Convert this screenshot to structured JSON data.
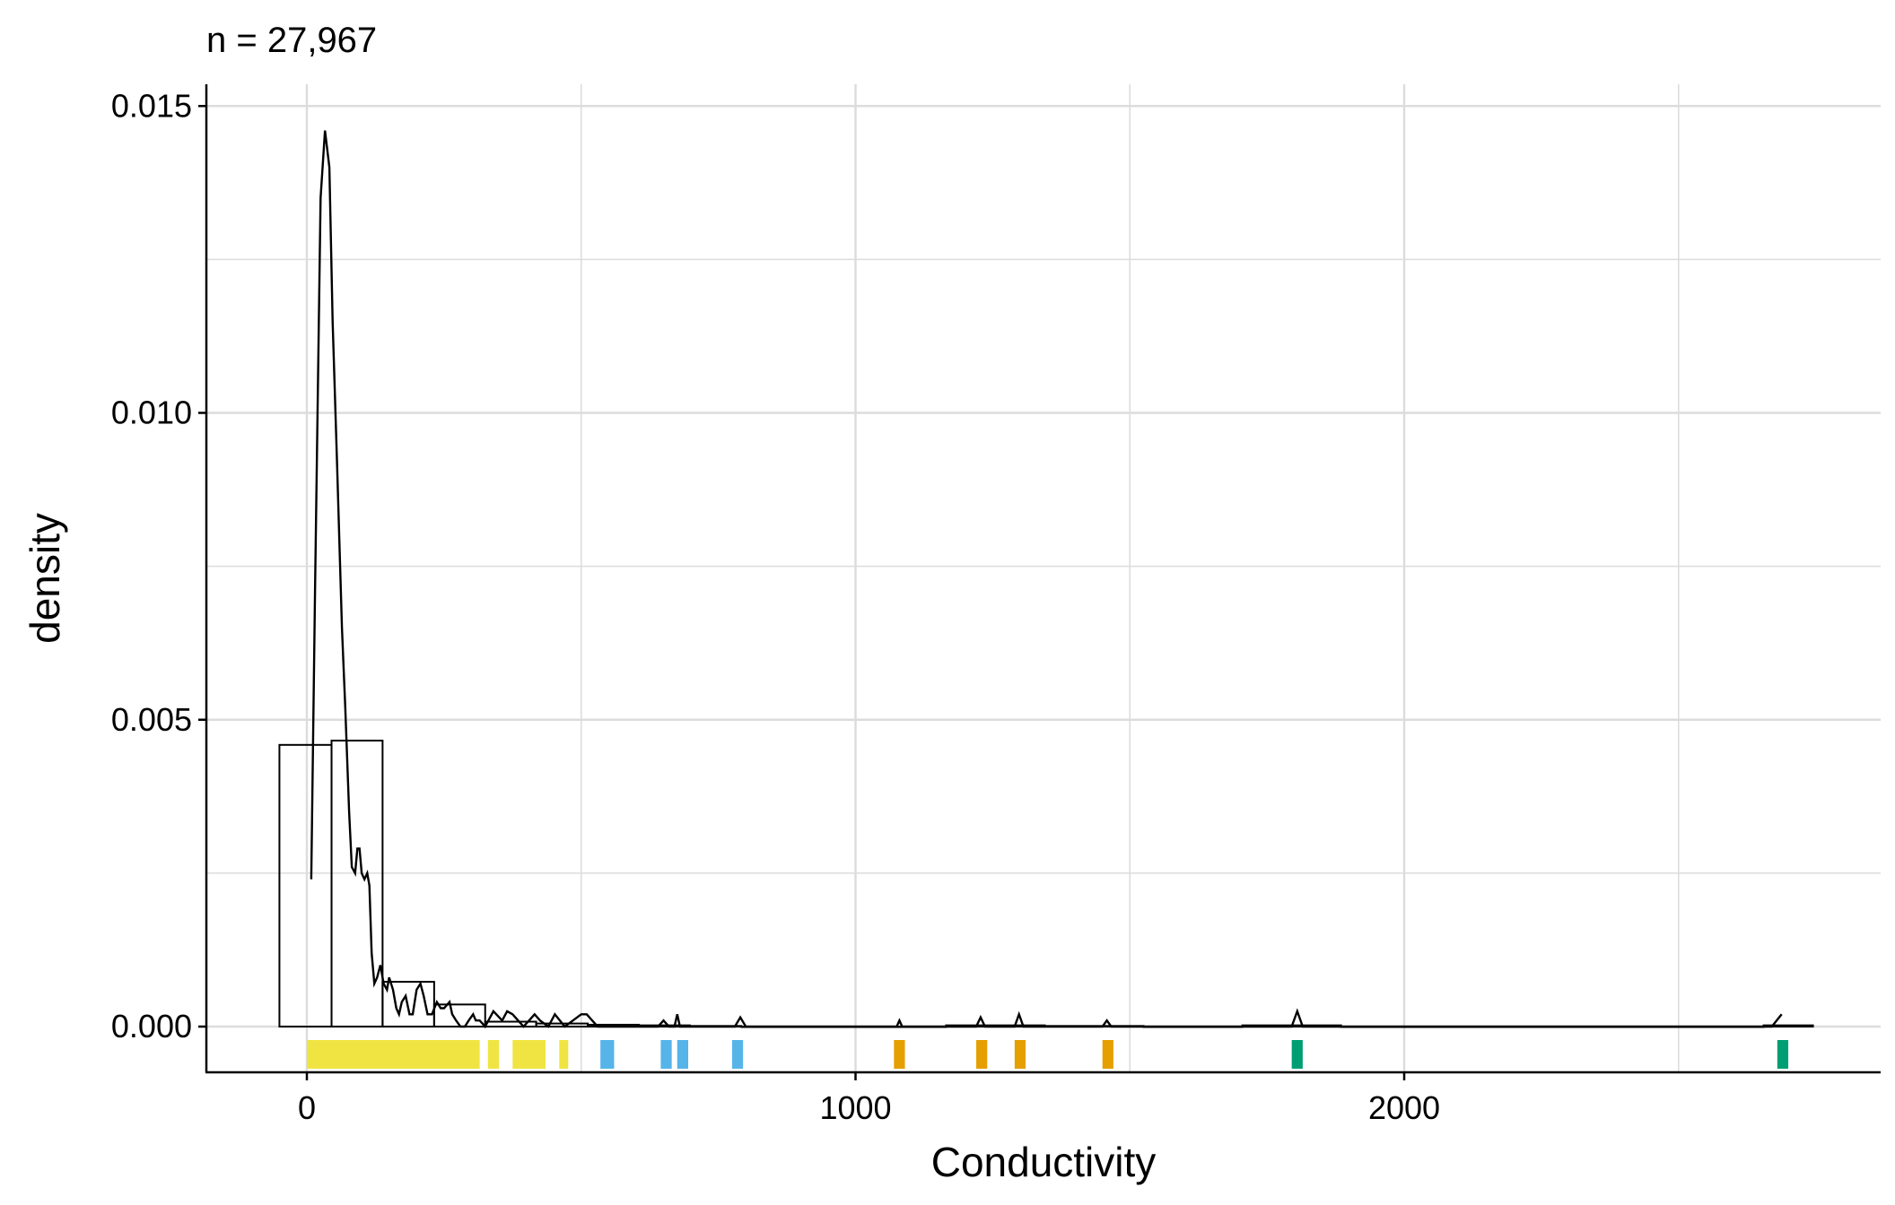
{
  "chart_data": {
    "type": "histogram",
    "subtitle": "n = 27,967",
    "title": "",
    "xlabel": "Conductivity",
    "ylabel": "density",
    "xlim": [
      -185,
      2855
    ],
    "ylim": [
      -0.00075,
      0.01535
    ],
    "x_ticks": [
      0,
      1000,
      2000
    ],
    "x_tick_labels": [
      "0",
      "1000",
      "2000"
    ],
    "y_ticks": [
      0.0,
      0.005,
      0.01,
      0.015
    ],
    "y_tick_labels": [
      "0.000",
      "0.005",
      "0.010",
      "0.015"
    ],
    "grid": true,
    "legend": "none",
    "histogram_bins": [
      {
        "x0": -50,
        "x1": 45,
        "density": 0.00459
      },
      {
        "x0": 45,
        "x1": 138,
        "density": 0.00466
      },
      {
        "x0": 138,
        "x1": 232,
        "density": 0.00073
      },
      {
        "x0": 232,
        "x1": 325,
        "density": 0.00036
      },
      {
        "x0": 325,
        "x1": 418,
        "density": 8e-05
      },
      {
        "x0": 418,
        "x1": 512,
        "density": 5e-05
      },
      {
        "x0": 512,
        "x1": 605,
        "density": 3e-05
      },
      {
        "x0": 605,
        "x1": 698,
        "density": 2e-05
      },
      {
        "x0": 698,
        "x1": 792,
        "density": 1e-05
      },
      {
        "x0": 792,
        "x1": 1165,
        "density": 0.0
      },
      {
        "x0": 1165,
        "x1": 1345,
        "density": 2e-05
      },
      {
        "x0": 1345,
        "x1": 1525,
        "density": 1e-05
      },
      {
        "x0": 1525,
        "x1": 1705,
        "density": 0.0
      },
      {
        "x0": 1705,
        "x1": 1885,
        "density": 2e-05
      },
      {
        "x0": 1885,
        "x1": 2655,
        "density": 0.0
      },
      {
        "x0": 2655,
        "x1": 2745,
        "density": 2e-05
      }
    ],
    "density_curve": {
      "x": [
        8,
        15,
        25,
        33,
        41,
        47,
        55,
        64,
        70,
        77,
        82,
        88,
        92,
        96,
        100,
        105,
        110,
        114,
        118,
        123,
        128,
        134,
        140,
        146,
        150,
        157,
        163,
        168,
        173,
        180,
        187,
        193,
        200,
        207,
        213,
        220,
        228,
        237,
        244,
        250,
        260,
        265,
        272,
        280,
        288,
        295,
        303,
        308,
        315,
        325,
        340,
        356,
        365,
        375,
        385,
        395,
        405,
        415,
        425,
        440,
        452,
        470,
        485,
        500,
        510,
        530,
        545,
        560,
        575,
        590,
        605,
        620,
        640,
        650,
        660,
        670,
        675,
        680,
        700,
        720,
        750,
        780,
        790,
        800,
        820,
        850,
        900,
        950,
        1000,
        1050,
        1075,
        1080,
        1085,
        1100,
        1150,
        1200,
        1220,
        1228,
        1236,
        1260,
        1280,
        1290,
        1298,
        1306,
        1320,
        1350,
        1400,
        1440,
        1450,
        1458,
        1466,
        1480,
        1550,
        1650,
        1750,
        1795,
        1805,
        1815,
        1830,
        1900,
        2100,
        2300,
        2500,
        2650,
        2670,
        2688
      ],
      "y": [
        0.0024,
        0.0072,
        0.0135,
        0.0146,
        0.014,
        0.0115,
        0.0092,
        0.0065,
        0.0052,
        0.0035,
        0.0026,
        0.0025,
        0.0029,
        0.0029,
        0.0025,
        0.0024,
        0.0025,
        0.0023,
        0.0012,
        0.0007,
        0.0008,
        0.001,
        0.0007,
        0.0006,
        0.0008,
        0.0006,
        0.0003,
        0.0002,
        0.0004,
        0.0005,
        0.0002,
        0.0002,
        0.0006,
        0.0007,
        0.0005,
        0.0002,
        0.0002,
        0.0004,
        0.0003,
        0.0003,
        0.0004,
        0.0002,
        0.0001,
        0.0,
        0.0,
        0.0001,
        0.0002,
        0.0001,
        0.0001,
        0.0,
        0.00025,
        0.0001,
        0.00025,
        0.0002,
        0.0001,
        0.0,
        0.0001,
        0.0002,
        0.0001,
        0.0,
        0.0002,
        0.0,
        0.0001,
        0.0002,
        0.0002,
        0.0,
        0.0,
        0.0,
        0.0,
        0.0,
        0.0,
        0.0,
        0.0,
        0.0001,
        0.0,
        0.0,
        0.0002,
        0.0,
        0.0,
        0.0,
        0.0,
        0.0,
        0.00015,
        0.0,
        0.0,
        0.0,
        0.0,
        0.0,
        0.0,
        0.0,
        0.0,
        0.0001,
        0.0,
        0.0,
        0.0,
        0.0,
        0.0,
        0.00015,
        0.0,
        0.0,
        0.0,
        0.0,
        0.0002,
        0.0,
        0.0,
        0.0,
        0.0,
        0.0,
        0.0,
        0.0001,
        0.0,
        0.0,
        0.0,
        0.0,
        0.0,
        0.0,
        0.00025,
        0.0,
        0.0,
        0.0,
        0.0,
        0.0,
        0.0,
        0.0,
        0.0,
        0.0002
      ]
    },
    "rug_groups": [
      {
        "color": "#F0E442",
        "ranges": [
          [
            0,
            315
          ],
          [
            330,
            350
          ],
          [
            375,
            435
          ],
          [
            460,
            475
          ]
        ]
      },
      {
        "color": "#56B4E9",
        "ranges": [
          [
            535,
            560
          ],
          [
            645,
            665
          ],
          [
            675,
            695
          ],
          [
            775,
            795
          ]
        ]
      },
      {
        "color": "#E69F00",
        "ranges": [
          [
            1070,
            1090
          ],
          [
            1220,
            1240
          ],
          [
            1290,
            1310
          ],
          [
            1450,
            1470
          ]
        ]
      },
      {
        "color": "#009E73",
        "ranges": [
          [
            1795,
            1815
          ],
          [
            2680,
            2700
          ]
        ]
      }
    ]
  }
}
